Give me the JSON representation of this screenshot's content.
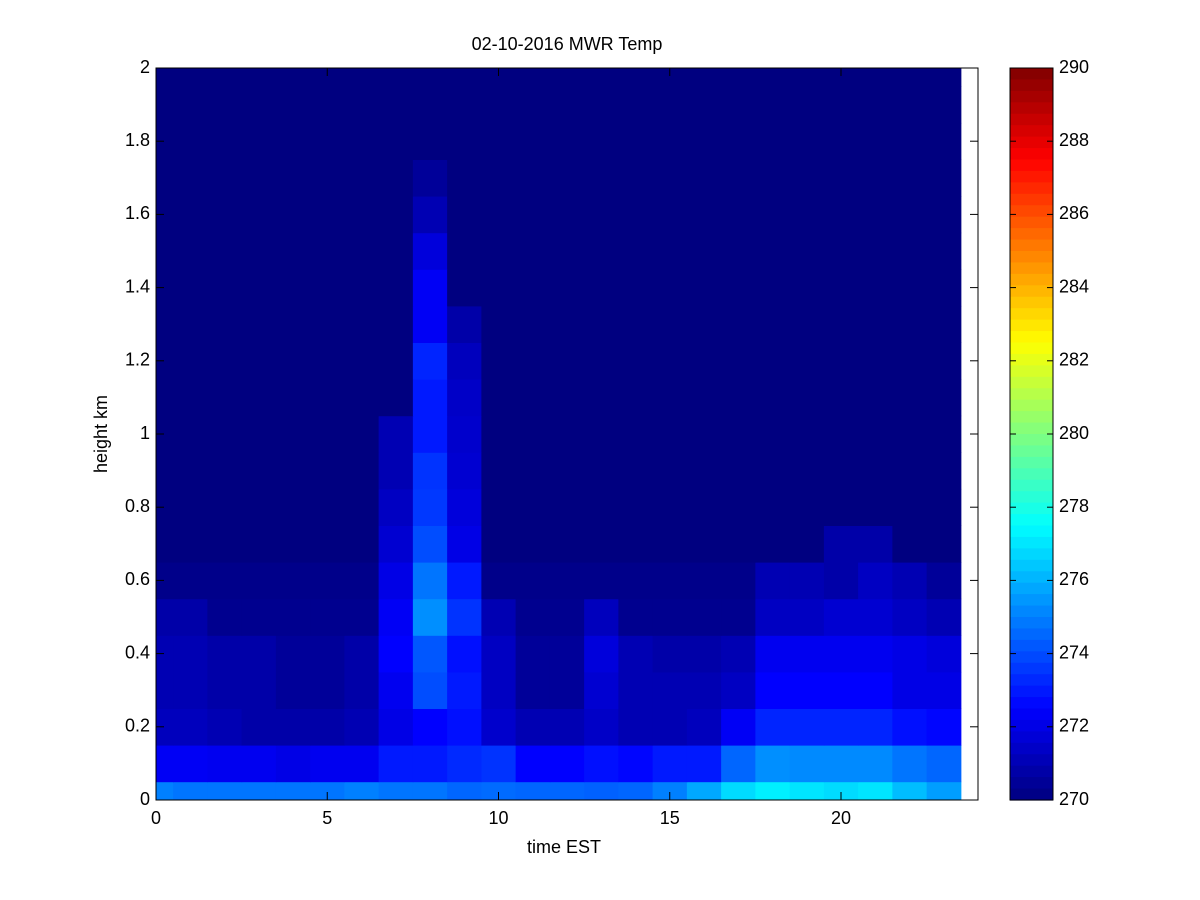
{
  "chart_data": {
    "type": "heatmap",
    "title": "02-10-2016 MWR Temp",
    "xlabel": "time EST",
    "ylabel": "height km",
    "x": [
      0,
      1,
      2,
      3,
      4,
      5,
      6,
      7,
      8,
      9,
      10,
      11,
      12,
      13,
      14,
      15,
      16,
      17,
      18,
      19,
      20,
      21,
      22,
      23
    ],
    "y": [
      0,
      0.1,
      0.2,
      0.3,
      0.4,
      0.5,
      0.6,
      0.7,
      0.8,
      0.9,
      1.0,
      1.1,
      1.2,
      1.3,
      1.4,
      1.5,
      1.6,
      1.7,
      1.8,
      1.9,
      2.0
    ],
    "z": [
      [
        275,
        274.8,
        274.8,
        274.8,
        274.8,
        274.8,
        275,
        274.8,
        274.8,
        274.5,
        274.6,
        274.5,
        274.5,
        274.4,
        274.5,
        275,
        275.8,
        276.8,
        277.2,
        277,
        276.8,
        277,
        276.2,
        275.6
      ],
      [
        272.3,
        272.3,
        272.2,
        272.2,
        272,
        272.2,
        272.2,
        273,
        273,
        273.3,
        273.5,
        272.5,
        272.5,
        272.8,
        272.6,
        273,
        273,
        274.5,
        275.3,
        275.2,
        275.2,
        275.2,
        274.8,
        274.5
      ],
      [
        271.2,
        271.2,
        271,
        270.8,
        270.8,
        270.8,
        271,
        272,
        272.5,
        272.8,
        271.5,
        271,
        271,
        271.4,
        271,
        271,
        271.2,
        272.3,
        273.2,
        273.2,
        273.2,
        273.2,
        272.8,
        272.6
      ],
      [
        271,
        271,
        270.8,
        270.8,
        270.5,
        270.5,
        270.8,
        272.2,
        274,
        273,
        271.3,
        270.5,
        270.5,
        271.6,
        271,
        271,
        271,
        271.3,
        272.5,
        272.5,
        272.5,
        272.5,
        272,
        272
      ],
      [
        271,
        271,
        270.8,
        270.8,
        270.5,
        270.5,
        270.8,
        272.5,
        274.2,
        272.8,
        271.3,
        270.5,
        270.5,
        271.8,
        271,
        270.8,
        270.8,
        271,
        272.2,
        272.2,
        272.2,
        272.2,
        272,
        271.8
      ],
      [
        270.8,
        270.8,
        270.3,
        270.3,
        270.3,
        270.3,
        270.3,
        272.3,
        275.3,
        273.5,
        271,
        270.3,
        270.3,
        271.2,
        270.3,
        270.3,
        270.3,
        270.3,
        271.3,
        271.3,
        271.6,
        271.6,
        271.3,
        271
      ],
      [
        270.2,
        270.2,
        270.2,
        270.2,
        270.2,
        270.2,
        270.2,
        272,
        274.8,
        273,
        270.2,
        270.2,
        270.2,
        270.2,
        270.2,
        270.2,
        270.2,
        270.2,
        271,
        271,
        270.8,
        271.3,
        271,
        270.5
      ],
      [
        270,
        270,
        270,
        270,
        270,
        270,
        270,
        271.6,
        274,
        272,
        270,
        270,
        270,
        270,
        270,
        270,
        270,
        270,
        270,
        270,
        270.8,
        270.8,
        270,
        270
      ],
      [
        270,
        270,
        270,
        270,
        270,
        270,
        270,
        271.3,
        273.6,
        271.8,
        270,
        270,
        270,
        270,
        270,
        270,
        270,
        270,
        270,
        270,
        270,
        270,
        270,
        270
      ],
      [
        270,
        270,
        270,
        270,
        270,
        270,
        270,
        271,
        273.5,
        271.6,
        270,
        270,
        270,
        270,
        270,
        270,
        270,
        270,
        270,
        270,
        270,
        270,
        270,
        270
      ],
      [
        270,
        270,
        270,
        270,
        270,
        270,
        270,
        271,
        273,
        271.5,
        270,
        270,
        270,
        270,
        270,
        270,
        270,
        270,
        270,
        270,
        270,
        270,
        270,
        270
      ],
      [
        270,
        270,
        270,
        270,
        270,
        270,
        270,
        270,
        273,
        271.4,
        270,
        270,
        270,
        270,
        270,
        270,
        270,
        270,
        270,
        270,
        270,
        270,
        270,
        270
      ],
      [
        270,
        270,
        270,
        270,
        270,
        270,
        270,
        270,
        273.2,
        271.2,
        270,
        270,
        270,
        270,
        270,
        270,
        270,
        270,
        270,
        270,
        270,
        270,
        270,
        270
      ],
      [
        270,
        270,
        270,
        270,
        270,
        270,
        270,
        270,
        272.3,
        270.8,
        270,
        270,
        270,
        270,
        270,
        270,
        270,
        270,
        270,
        270,
        270,
        270,
        270,
        270
      ],
      [
        270,
        270,
        270,
        270,
        270,
        270,
        270,
        270,
        272.3,
        270,
        270,
        270,
        270,
        270,
        270,
        270,
        270,
        270,
        270,
        270,
        270,
        270,
        270,
        270
      ],
      [
        270,
        270,
        270,
        270,
        270,
        270,
        270,
        270,
        271.8,
        270,
        270,
        270,
        270,
        270,
        270,
        270,
        270,
        270,
        270,
        270,
        270,
        270,
        270,
        270
      ],
      [
        270,
        270,
        270,
        270,
        270,
        270,
        270,
        270,
        271,
        270,
        270,
        270,
        270,
        270,
        270,
        270,
        270,
        270,
        270,
        270,
        270,
        270,
        270,
        270
      ],
      [
        270,
        270,
        270,
        270,
        270,
        270,
        270,
        270,
        270.5,
        270,
        270,
        270,
        270,
        270,
        270,
        270,
        270,
        270,
        270,
        270,
        270,
        270,
        270,
        270
      ],
      [
        270,
        270,
        270,
        270,
        270,
        270,
        270,
        270,
        270,
        270,
        270,
        270,
        270,
        270,
        270,
        270,
        270,
        270,
        270,
        270,
        270,
        270,
        270,
        270
      ],
      [
        270,
        270,
        270,
        270,
        270,
        270,
        270,
        270,
        270,
        270,
        270,
        270,
        270,
        270,
        270,
        270,
        270,
        270,
        270,
        270,
        270,
        270,
        270,
        270
      ],
      [
        270,
        270,
        270,
        270,
        270,
        270,
        270,
        270,
        270,
        270,
        270,
        270,
        270,
        270,
        270,
        270,
        270,
        270,
        270,
        270,
        270,
        270,
        270,
        270
      ]
    ],
    "xlim": [
      0,
      24
    ],
    "ylim": [
      0,
      2
    ],
    "xticks": [
      0,
      5,
      10,
      15,
      20
    ],
    "yticks": [
      0,
      0.2,
      0.4,
      0.6,
      0.8,
      1,
      1.2,
      1.4,
      1.6,
      1.8,
      2
    ],
    "clim": [
      270,
      290
    ],
    "cticks": [
      270,
      272,
      274,
      276,
      278,
      280,
      282,
      284,
      286,
      288,
      290
    ],
    "colormap": "jet"
  }
}
